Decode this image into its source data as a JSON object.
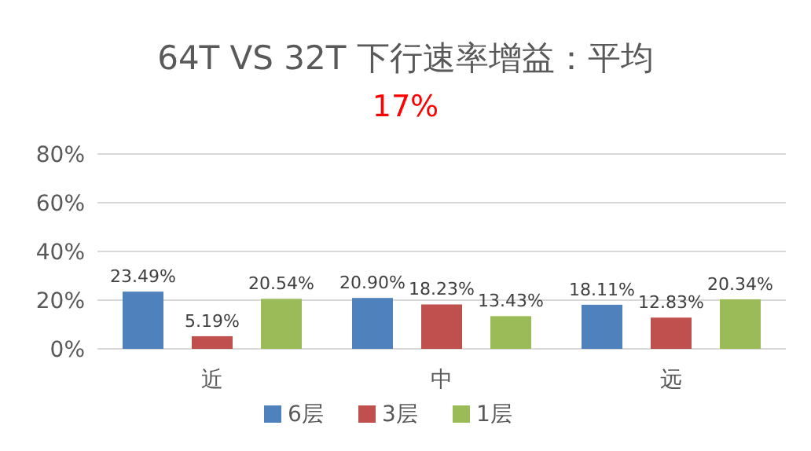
{
  "chart_data": {
    "type": "bar",
    "title": "64T VS 32T 下行速率增益：平均",
    "subtitle": "17%",
    "categories": [
      "近",
      "中",
      "远"
    ],
    "series": [
      {
        "name": "6层",
        "color": "#4f81bd",
        "values": [
          23.49,
          20.9,
          18.11
        ],
        "value_labels": [
          "23.49%",
          "20.90%",
          "18.11%"
        ]
      },
      {
        "name": "3层",
        "color": "#c0504d",
        "values": [
          5.19,
          18.23,
          12.83
        ],
        "value_labels": [
          "5.19%",
          "18.23%",
          "12.83%"
        ]
      },
      {
        "name": "1层",
        "color": "#9bbb59",
        "values": [
          20.54,
          13.43,
          20.34
        ],
        "value_labels": [
          "20.54%",
          "13.43%",
          "20.34%"
        ]
      }
    ],
    "ylim": [
      0,
      80
    ],
    "yticks": [
      {
        "value": 0,
        "label": "0%"
      },
      {
        "value": 20,
        "label": "20%"
      },
      {
        "value": 40,
        "label": "40%"
      },
      {
        "value": 60,
        "label": "60%"
      },
      {
        "value": 80,
        "label": "80%"
      }
    ],
    "grid": "y",
    "legend": "bottom"
  }
}
